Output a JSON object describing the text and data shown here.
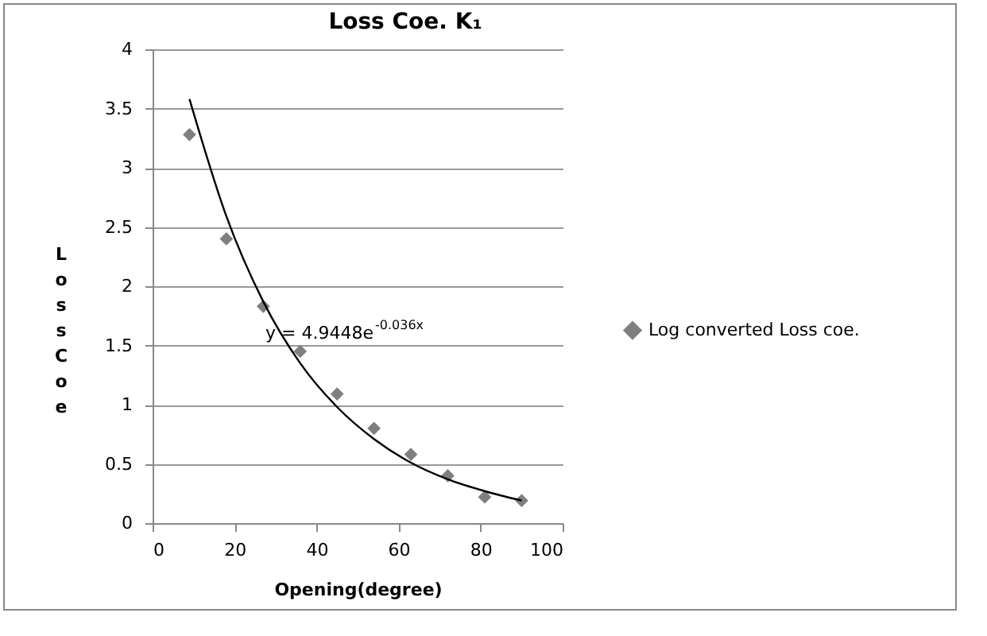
{
  "chart_data": {
    "type": "scatter",
    "title": "Loss Coe. K₁",
    "xlabel": "Opening(degree)",
    "ylabel": "Loss Coe",
    "annotations": [
      "y = 4.9448e$^{-0.036x}$"
    ],
    "x": [
      9,
      18,
      27,
      36,
      45,
      54,
      63,
      72,
      81,
      90
    ],
    "series": [
      {
        "name": "Log converted Loss coe.",
        "color": "#7f7f7f",
        "values": [
          3.28,
          2.4,
          1.83,
          1.45,
          1.09,
          0.8,
          0.58,
          0.4,
          0.22,
          0.19
        ],
        "marker": "diamond"
      },
      {
        "type": "line",
        "color": "#000000",
        "x": [
          9,
          18,
          27,
          36,
          45,
          54,
          63,
          72,
          81,
          90
        ],
        "values": [
          3.58,
          2.59,
          1.87,
          1.35,
          0.98,
          0.71,
          0.51,
          0.37,
          0.27,
          0.19
        ],
        "line_style": "solid"
      }
    ],
    "xlim": [
      0,
      100
    ],
    "xticks": [
      0,
      20,
      40,
      60,
      80,
      100
    ],
    "ylim": [
      0,
      4
    ],
    "yticks": [
      0,
      0.5,
      1,
      1.5,
      2,
      2.5,
      3,
      3.5,
      4
    ],
    "grid": "y",
    "legend": "right"
  }
}
